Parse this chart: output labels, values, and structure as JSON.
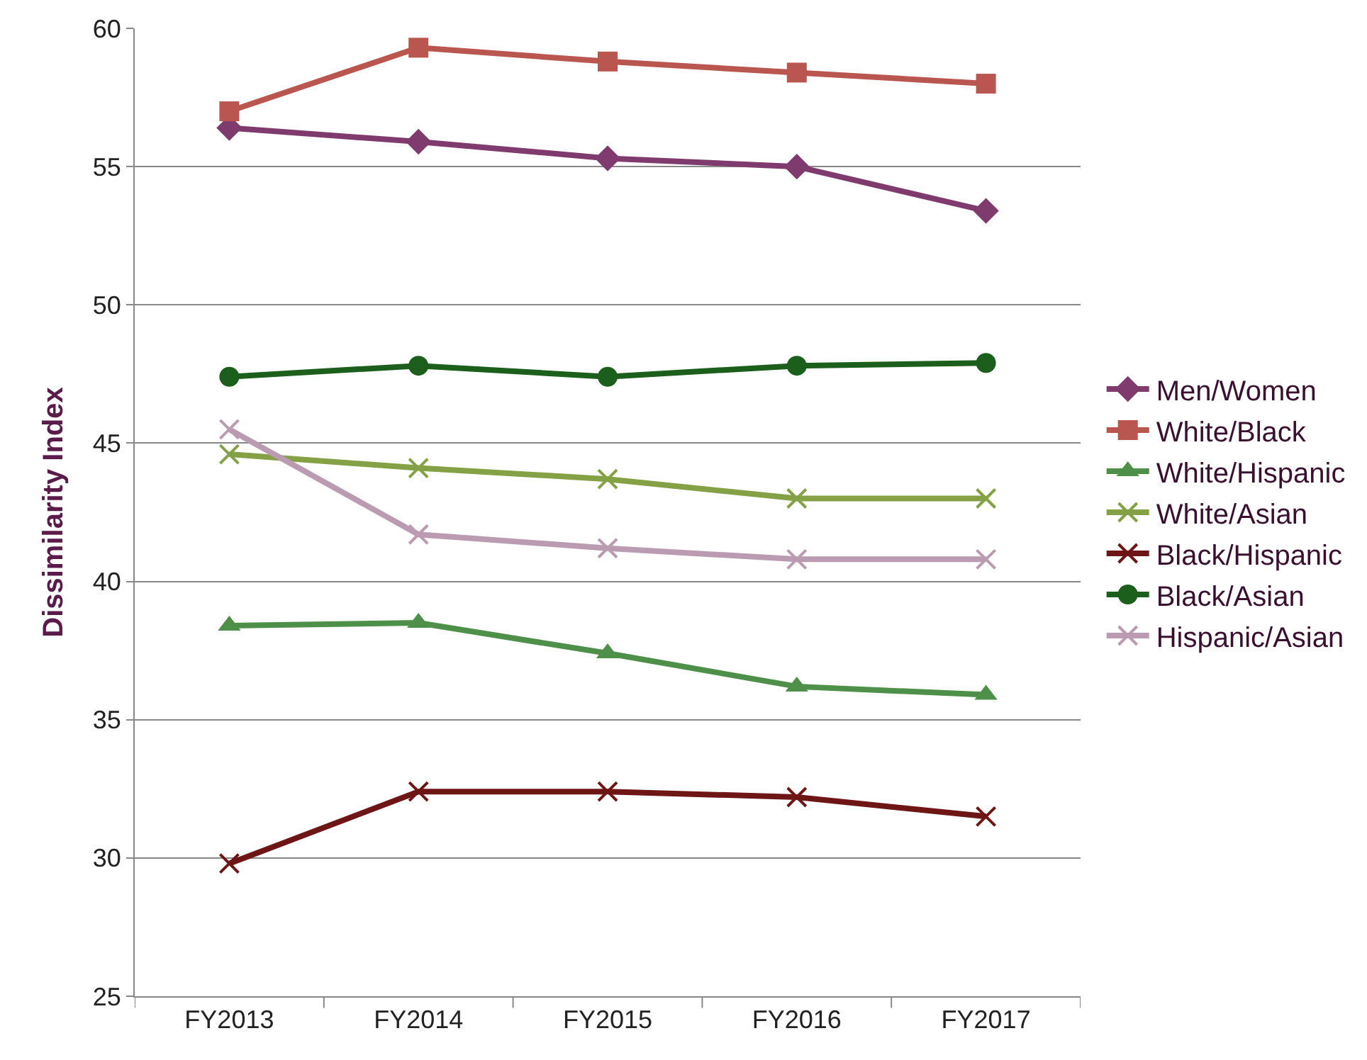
{
  "chart_data": {
    "type": "line",
    "ylabel": "Dissimilarity Index",
    "categories": [
      "FY2013",
      "FY2014",
      "FY2015",
      "FY2016",
      "FY2017"
    ],
    "series": [
      {
        "name": "Men/Women",
        "color": "#7f3b6e",
        "marker": "diamond",
        "values": [
          56.4,
          55.9,
          55.3,
          55.0,
          53.4
        ]
      },
      {
        "name": "White/Black",
        "color": "#b9564f",
        "marker": "square",
        "values": [
          57.0,
          59.3,
          58.8,
          58.4,
          58.0
        ]
      },
      {
        "name": "White/Hispanic",
        "color": "#4e8f4a",
        "marker": "triangle",
        "values": [
          38.4,
          38.5,
          37.4,
          36.2,
          35.9
        ]
      },
      {
        "name": "White/Asian",
        "color": "#84a146",
        "marker": "cross",
        "values": [
          44.6,
          44.1,
          43.7,
          43.0,
          43.0
        ]
      },
      {
        "name": "Black/Hispanic",
        "color": "#6e1616",
        "marker": "cross",
        "values": [
          29.8,
          32.4,
          32.4,
          32.2,
          31.5
        ]
      },
      {
        "name": "Black/Asian",
        "color": "#1c5e1c",
        "marker": "circle",
        "values": [
          47.4,
          47.8,
          47.4,
          47.8,
          47.9
        ]
      },
      {
        "name": "Hispanic/Asian",
        "color": "#bb9bb1",
        "marker": "cross",
        "values": [
          45.5,
          41.7,
          41.2,
          40.8,
          40.8
        ]
      }
    ],
    "ylim": [
      25,
      60
    ],
    "yticks": [
      25,
      30,
      35,
      40,
      45,
      50,
      55,
      60
    ],
    "grid": "y",
    "legend": "right"
  }
}
